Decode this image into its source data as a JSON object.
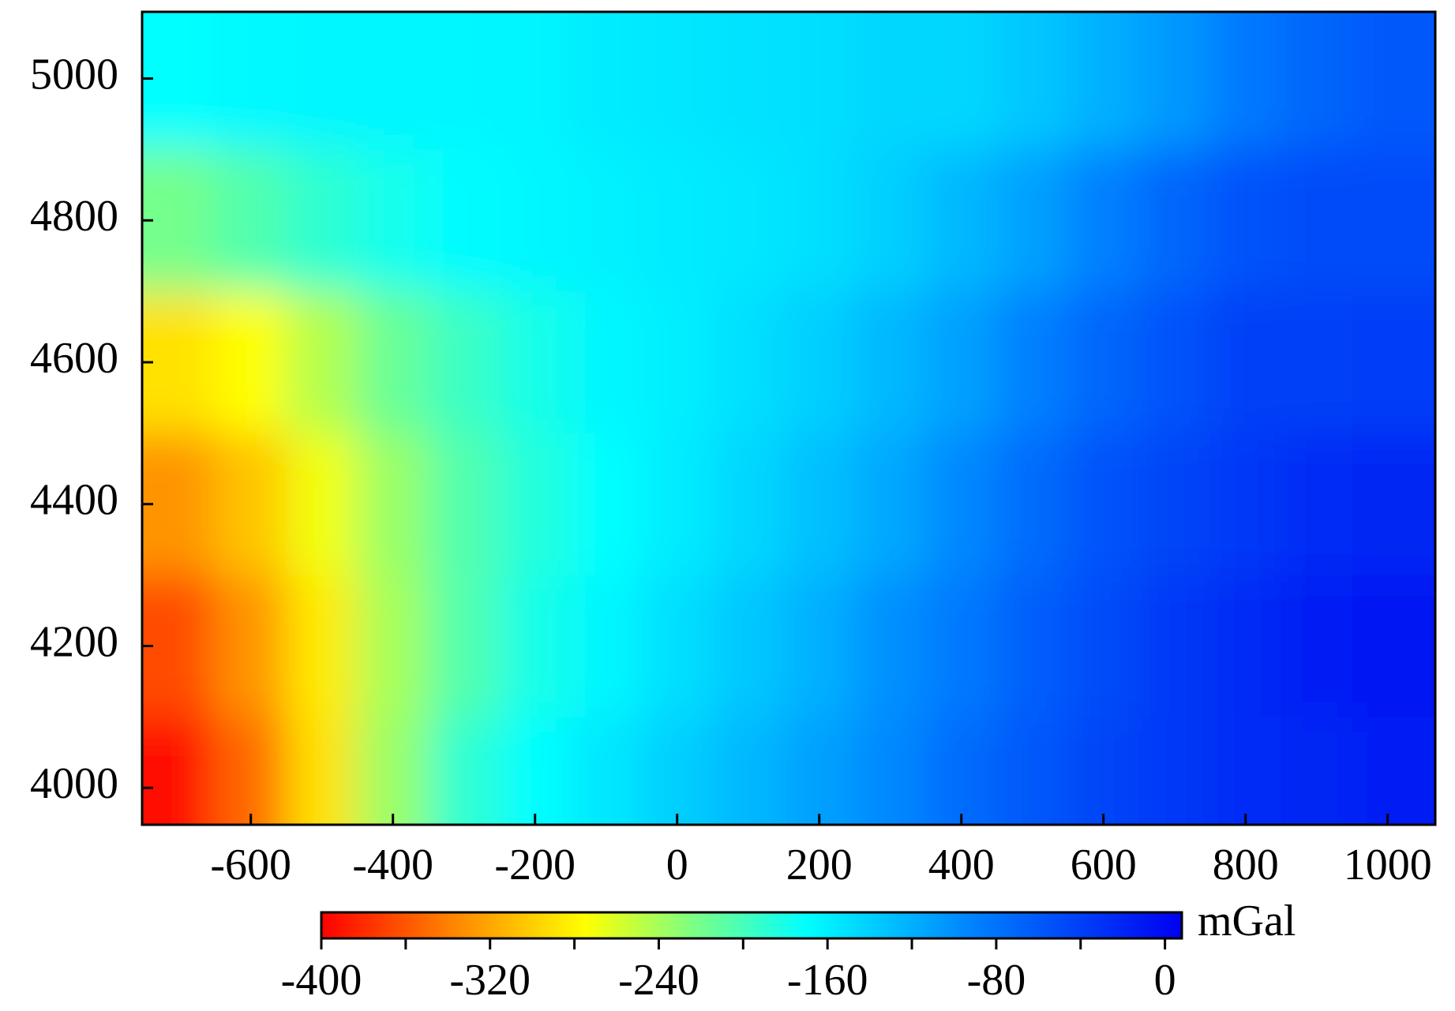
{
  "chart_data": {
    "type": "contour",
    "x": [
      -700,
      -600,
      -500,
      -400,
      -300,
      -200,
      -100,
      0,
      100,
      200,
      300,
      400,
      500,
      600,
      700,
      800,
      900,
      1000
    ],
    "y": [
      5000,
      4800,
      4600,
      4400,
      4200,
      4000
    ],
    "z": [
      [
        -170,
        -166,
        -165,
        -165,
        -165,
        -164,
        -158,
        -155,
        -152,
        -150,
        -145,
        -145,
        -135,
        -120,
        -105,
        -85,
        -70,
        -60
      ],
      [
        -220,
        -205,
        -190,
        -178,
        -168,
        -165,
        -162,
        -158,
        -155,
        -150,
        -140,
        -125,
        -110,
        -90,
        -70,
        -55,
        -50,
        -50
      ],
      [
        -290,
        -275,
        -245,
        -215,
        -195,
        -180,
        -165,
        -160,
        -150,
        -140,
        -125,
        -110,
        -90,
        -70,
        -55,
        -40,
        -40,
        -38
      ],
      [
        -330,
        -305,
        -270,
        -235,
        -205,
        -185,
        -170,
        -158,
        -145,
        -130,
        -115,
        -95,
        -75,
        -55,
        -45,
        -35,
        -25,
        -20
      ],
      [
        -365,
        -330,
        -285,
        -240,
        -205,
        -180,
        -165,
        -150,
        -135,
        -120,
        -100,
        -85,
        -65,
        -50,
        -35,
        -25,
        -15,
        -10
      ],
      [
        -395,
        -350,
        -290,
        -235,
        -190,
        -170,
        -155,
        -140,
        -125,
        -110,
        -95,
        -75,
        -60,
        -45,
        -35,
        -25,
        -20,
        -15
      ]
    ],
    "xlim": [
      -753,
      1067
    ],
    "xticks": [
      -600,
      -400,
      -200,
      0,
      200,
      400,
      600,
      800,
      1000
    ],
    "ylim": [
      3948,
      5094
    ],
    "yticks": [
      4000,
      4200,
      4400,
      4600,
      4800,
      5000
    ],
    "colorbar": {
      "label": "mGal",
      "lim": [
        -400,
        8
      ],
      "ticks": [
        -400,
        -320,
        -240,
        -160,
        -80,
        0
      ],
      "minor_ticks": [
        -360,
        -280,
        -200,
        -120,
        -40
      ],
      "colorscale": [
        [
          -400,
          "#ff0000"
        ],
        [
          -340,
          "#ff8000"
        ],
        [
          -275,
          "#ffff00"
        ],
        [
          -225,
          "#80ff80"
        ],
        [
          -170,
          "#00ffff"
        ],
        [
          -90,
          "#0080ff"
        ],
        [
          8,
          "#0000f0"
        ]
      ]
    }
  }
}
